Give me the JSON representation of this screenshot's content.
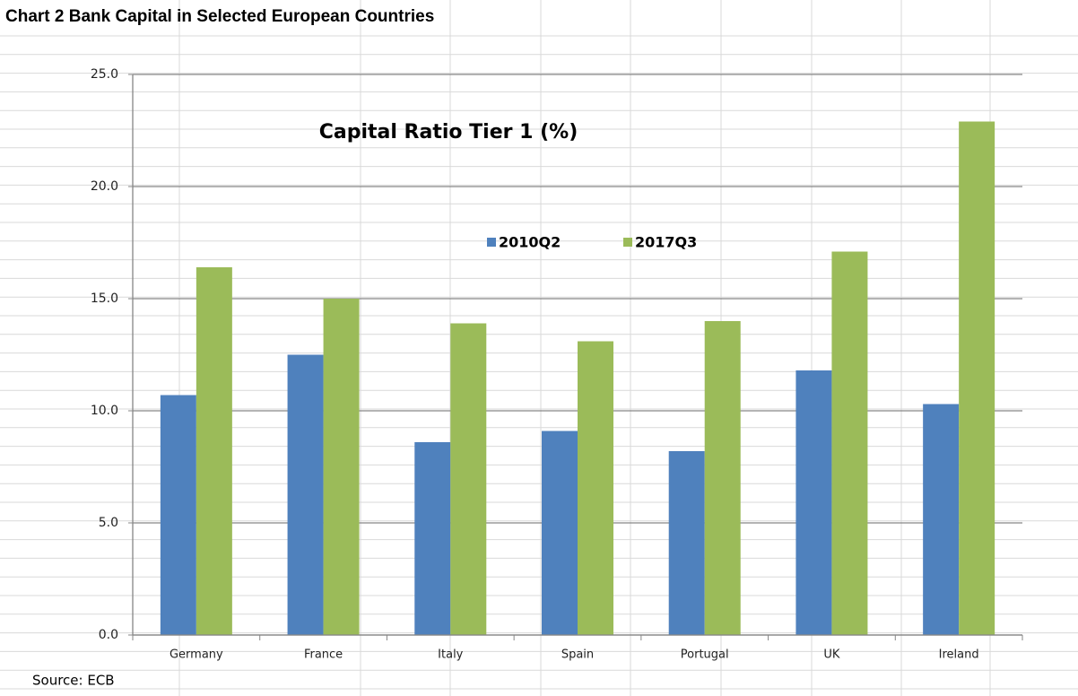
{
  "header": {
    "title": "Chart 2 Bank Capital in Selected European Countries"
  },
  "chart_data": {
    "type": "bar",
    "title": "Capital Ratio Tier 1 (%)",
    "categories": [
      "Germany",
      "France",
      "Italy",
      "Spain",
      "Portugal",
      "UK",
      "Ireland"
    ],
    "series": [
      {
        "name": "2010Q2",
        "color": "#4f81bd",
        "values": [
          10.7,
          12.5,
          8.6,
          9.1,
          8.2,
          11.8,
          10.3
        ]
      },
      {
        "name": "2017Q3",
        "color": "#9bbb59",
        "values": [
          16.4,
          15.0,
          13.9,
          13.1,
          14.0,
          17.1,
          22.9
        ]
      }
    ],
    "ylim": [
      0,
      25
    ],
    "yticks": [
      {
        "value": 0,
        "label": "0.0"
      },
      {
        "value": 5,
        "label": "5.0"
      },
      {
        "value": 10,
        "label": "10.0"
      },
      {
        "value": 15,
        "label": "15.0"
      },
      {
        "value": 20,
        "label": "20.0"
      },
      {
        "value": 25,
        "label": "25.0"
      }
    ],
    "grid": true,
    "legend": "top"
  },
  "footer": {
    "source": "Source: ECB"
  }
}
